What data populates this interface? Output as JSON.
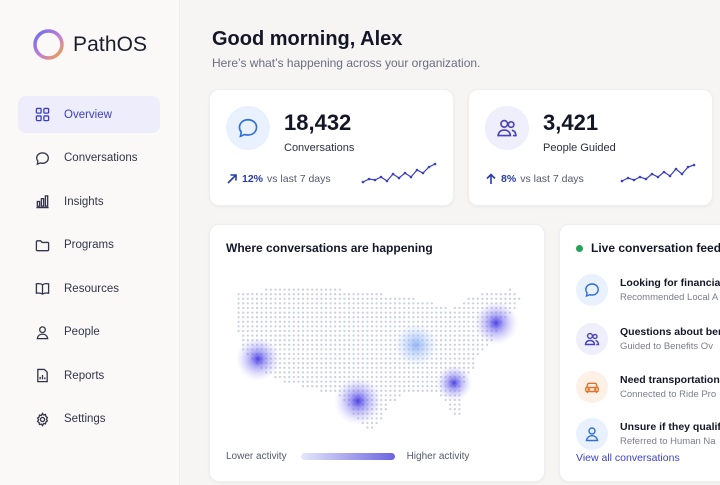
{
  "brand": {
    "name": "PathOS",
    "ring_colors": [
      "#6b6bf0",
      "#f3a23c"
    ]
  },
  "nav": {
    "items": [
      {
        "label": "Overview",
        "icon": "grid-icon",
        "active": true
      },
      {
        "label": "Conversations",
        "icon": "chat-bubble-icon"
      },
      {
        "label": "Insights",
        "icon": "bar-chart-icon"
      },
      {
        "label": "Programs",
        "icon": "folder-icon"
      },
      {
        "label": "Resources",
        "icon": "book-icon"
      },
      {
        "label": "People",
        "icon": "person-icon"
      },
      {
        "label": "Reports",
        "icon": "report-icon"
      },
      {
        "label": "Settings",
        "icon": "gear-icon"
      }
    ]
  },
  "header": {
    "greeting": "Good morning, Alex",
    "subtitle": "Here’s what’s happening across your organization."
  },
  "stats": [
    {
      "value": "18,432",
      "label": "Conversations",
      "trend_pct": "12%",
      "trend_text": "vs last 7 days",
      "icon": "chat-bubble-icon",
      "trend_icon": "trend-up-icon"
    },
    {
      "value": "3,421",
      "label": "People Guided",
      "trend_pct": "8%",
      "trend_text": "vs last 7 days",
      "icon": "people-icon",
      "trend_icon": "arrow-up-icon"
    }
  ],
  "map": {
    "title": "Where conversations are happening",
    "legend_low": "Lower activity",
    "legend_high": "Higher activity",
    "accent": "#5b52e6"
  },
  "feed": {
    "title": "Live conversation feed",
    "items": [
      {
        "title": "Looking for financial",
        "sub": "Recommended Local A",
        "icon": "chat-bubble-icon",
        "tint": "#e8f1fd"
      },
      {
        "title": "Questions about ben",
        "sub": "Guided to Benefits Ov",
        "icon": "people-icon",
        "tint": "#efeefb"
      },
      {
        "title": "Need transportation",
        "sub": "Connected to Ride Pro",
        "icon": "car-icon",
        "tint": "#fdf0e6"
      },
      {
        "title": "Unsure if they qualify",
        "sub": "Referred to Human Na",
        "icon": "person-icon",
        "tint": "#e8f1fd"
      }
    ],
    "link": "View all conversations"
  }
}
